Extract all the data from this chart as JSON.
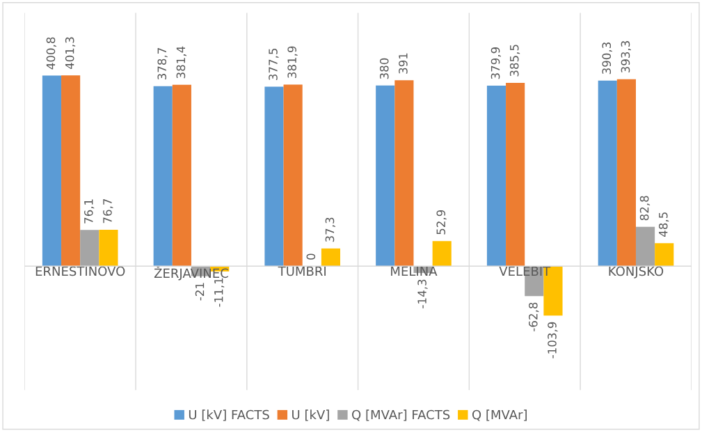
{
  "chart_data": {
    "type": "bar",
    "categories": [
      "ERNESTINOVO",
      "ŽERJAVINEC",
      "TUMBRI",
      "MELINA",
      "VELEBIT",
      "KONJSKO"
    ],
    "series": [
      {
        "name": "U [kV] FACTS",
        "color": "#5b9bd5",
        "values": [
          400.8,
          378.7,
          377.5,
          380,
          379.9,
          390.3
        ],
        "value_labels": [
          "400,8",
          "378,7",
          "377,5",
          "380",
          "379,9",
          "390,3"
        ]
      },
      {
        "name": "U [kV]",
        "color": "#ed7d31",
        "values": [
          401.3,
          381.4,
          381.9,
          391,
          385.5,
          393.3
        ],
        "value_labels": [
          "401,3",
          "381,4",
          "381,9",
          "391",
          "385,5",
          "393,3"
        ]
      },
      {
        "name": "Q [MVAr] FACTS",
        "color": "#a5a5a5",
        "values": [
          76.1,
          -21,
          0,
          -14.3,
          -62.8,
          82.8
        ],
        "value_labels": [
          "76,1",
          "-21",
          "0",
          "-14,3",
          "-62,8",
          "82,8"
        ]
      },
      {
        "name": "Q [MVAr]",
        "color": "#ffc000",
        "values": [
          76.7,
          -11.1,
          37.3,
          52.9,
          -103.9,
          48.5
        ],
        "value_labels": [
          "76,7",
          "-11,1",
          "37,3",
          "52,9",
          "-103,9",
          "48,5"
        ]
      }
    ],
    "grid": "x",
    "legend": "bottom"
  }
}
